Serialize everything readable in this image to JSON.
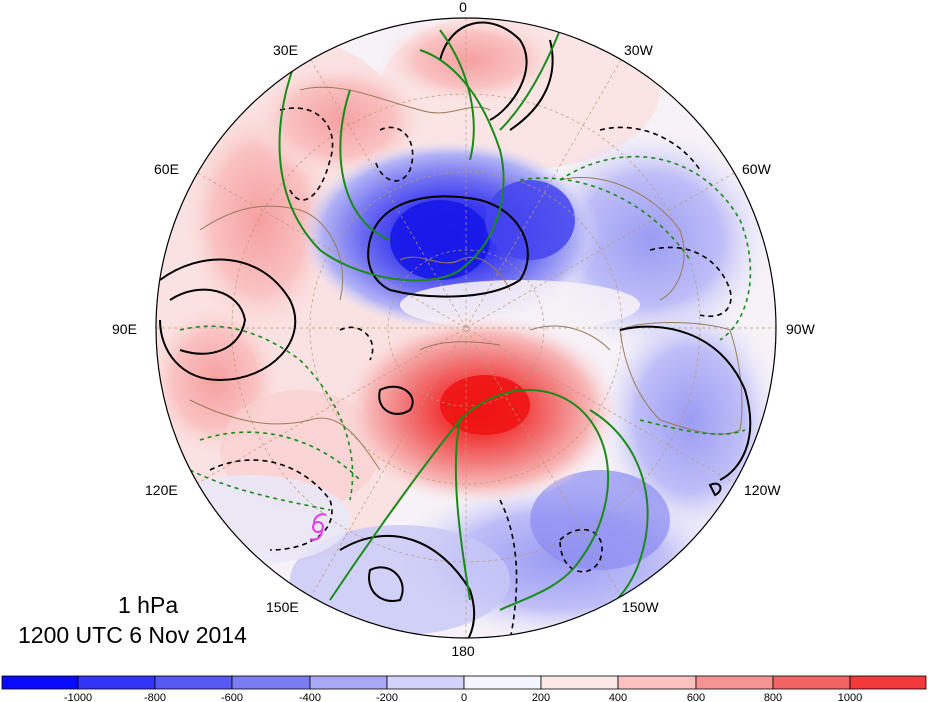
{
  "map": {
    "title_level": "1 hPa",
    "title_time": "1200 UTC 6 Nov 2014",
    "meridian_labels": [
      "0",
      "30W",
      "60W",
      "90W",
      "120W",
      "150W",
      "180",
      "150E",
      "120E",
      "90E",
      "60E",
      "30E"
    ],
    "features": {
      "negative_anomaly_center": "blue-low-over-arctic",
      "positive_anomaly_center": "red-high-over-bering",
      "tropical_cyclone_symbol": "hurricane-icon"
    },
    "colors": {
      "neg_strong": "#1010f0",
      "neg_mid": "#6c6cf2",
      "neg_weak": "#c8c8f8",
      "neutral": "#f4f4fc",
      "pos_weak": "#fbd2d2",
      "pos_mid": "#f28a8a",
      "pos_strong": "#f01a1a",
      "contour_black": "#000000",
      "contour_green": "#1a8a1a",
      "coast": "#9a7a5a",
      "cyclone_symbol": "#e23be2"
    }
  },
  "colorbar": {
    "ticks": [
      "-1000",
      "-800",
      "-600",
      "-400",
      "-200",
      "0",
      "200",
      "400",
      "600",
      "800",
      "1000"
    ],
    "bins": [
      "#0a0aff",
      "#3434f6",
      "#5757f2",
      "#7c7cf2",
      "#a8a8f6",
      "#d2d2fa",
      "#f4f4fc",
      "#fde8e8",
      "#fbc0c0",
      "#f69494",
      "#f26464",
      "#f23a3a",
      "#f01010"
    ]
  }
}
